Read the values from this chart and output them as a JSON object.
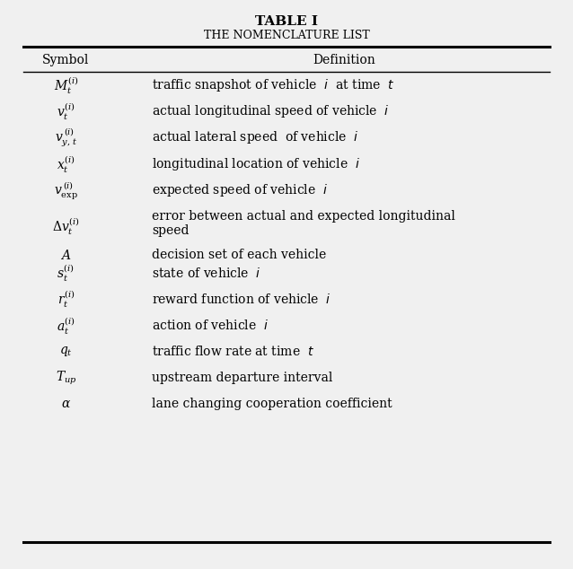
{
  "title_bold": "TABLE I",
  "title_sub": "The Nomenclature list",
  "col_header_sym": "Symbol",
  "col_header_def": "Definition",
  "rows": [
    {
      "sym": "$M_t^{(i)}$",
      "def": "traffic snapshot of vehicle  $i$  at time  $t$",
      "two_line": false
    },
    {
      "sym": "$v_t^{(i)}$",
      "def": "actual longitudinal speed of vehicle  $i$",
      "two_line": false
    },
    {
      "sym": "$v_{y,\\,t}^{\\,(i)}$",
      "def": "actual lateral speed  of vehicle  $i$",
      "two_line": false
    },
    {
      "sym": "$x_t^{(i)}$",
      "def": "longitudinal location of vehicle  $i$",
      "two_line": false
    },
    {
      "sym": "$v_{\\mathrm{exp}}^{\\,(i)}$",
      "def": "expected speed of vehicle  $i$",
      "two_line": false
    },
    {
      "sym": "$\\Delta v_t^{(i)}$",
      "def": "error between actual and expected longitudinal\nspeed",
      "two_line": true
    },
    {
      "sym": "$A$",
      "def": "decision set of each vehicle",
      "two_line": false
    },
    {
      "sym": "$s_t^{(i)}$",
      "def": "state of vehicle  $i$",
      "two_line": false
    },
    {
      "sym": "$r_t^{(i)}$",
      "def": "reward function of vehicle  $i$",
      "two_line": false
    },
    {
      "sym": "$a_t^{(i)}$",
      "def": "action of vehicle  $i$",
      "two_line": false
    },
    {
      "sym": "$q_t$",
      "def": "traffic flow rate at time  $t$",
      "two_line": false
    },
    {
      "sym": "$T_{up}$",
      "def": "upstream departure interval",
      "two_line": false
    },
    {
      "sym": "$\\alpha$",
      "def": "lane changing cooperation coefficient",
      "two_line": false
    }
  ],
  "fig_width": 6.38,
  "fig_height": 6.34,
  "bg_color": "#f0f0f0",
  "text_color": "#000000",
  "fontsize_title": 11,
  "fontsize_sub": 9,
  "fontsize_header": 10,
  "fontsize_row": 10
}
